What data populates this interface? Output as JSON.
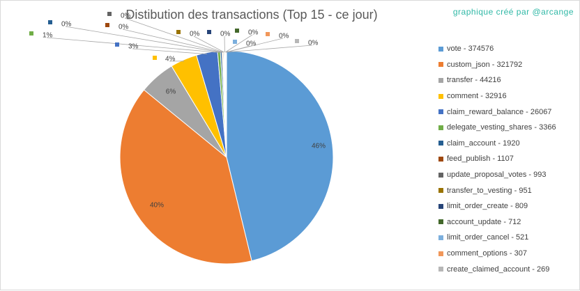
{
  "credit": "graphique créé par @arcange",
  "chart_data": {
    "type": "pie",
    "title": "Distibution des transactions (Top 15 - ce jour)",
    "legend_position": "right",
    "slices": [
      {
        "label": "vote - 374576",
        "value": 374576,
        "percent_label": "46%",
        "color": "#5b9bd5"
      },
      {
        "label": "custom_json - 321792",
        "value": 321792,
        "percent_label": "40%",
        "color": "#ed7d31"
      },
      {
        "label": "transfer - 44216",
        "value": 44216,
        "percent_label": "6%",
        "color": "#a5a5a5"
      },
      {
        "label": "comment - 32916",
        "value": 32916,
        "percent_label": "4%",
        "color": "#ffc000"
      },
      {
        "label": "claim_reward_balance - 26067",
        "value": 26067,
        "percent_label": "3%",
        "color": "#4472c4"
      },
      {
        "label": "delegate_vesting_shares - 3366",
        "value": 3366,
        "percent_label": "1%",
        "color": "#70ad47"
      },
      {
        "label": "claim_account - 1920",
        "value": 1920,
        "percent_label": "0%",
        "color": "#255e91"
      },
      {
        "label": "feed_publish - 1107",
        "value": 1107,
        "percent_label": "0%",
        "color": "#9e480e"
      },
      {
        "label": "update_proposal_votes - 993",
        "value": 993,
        "percent_label": "0%",
        "color": "#636363"
      },
      {
        "label": "transfer_to_vesting - 951",
        "value": 951,
        "percent_label": "0%",
        "color": "#997300"
      },
      {
        "label": "limit_order_create - 809",
        "value": 809,
        "percent_label": "0%",
        "color": "#264478"
      },
      {
        "label": "account_update - 712",
        "value": 712,
        "percent_label": "0%",
        "color": "#43682b"
      },
      {
        "label": "limit_order_cancel - 521",
        "value": 521,
        "percent_label": "0%",
        "color": "#7cafdd"
      },
      {
        "label": "comment_options - 307",
        "value": 307,
        "percent_label": "0%",
        "color": "#f1975a"
      },
      {
        "label": "create_claimed_account - 269",
        "value": 269,
        "percent_label": "0%",
        "color": "#b7b7b7"
      }
    ]
  }
}
